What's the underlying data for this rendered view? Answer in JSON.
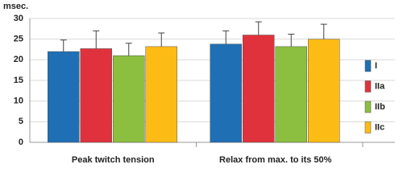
{
  "chart_data": {
    "type": "bar",
    "y_label": "msec.",
    "categories": [
      "Peak twitch tension",
      "Relax from max. to its 50%"
    ],
    "series": [
      {
        "name": "I",
        "color": "#1f6fb4",
        "values": [
          22,
          23.8
        ],
        "errors": [
          2.8,
          3.2
        ]
      },
      {
        "name": "IIa",
        "color": "#e0323c",
        "values": [
          22.7,
          26
        ],
        "errors": [
          4.3,
          3.2
        ]
      },
      {
        "name": "IIb",
        "color": "#8cbf3f",
        "values": [
          21,
          23.2
        ],
        "errors": [
          3,
          3
        ]
      },
      {
        "name": "IIc",
        "color": "#fdbb16",
        "values": [
          23.2,
          25
        ],
        "errors": [
          3.3,
          3.6
        ]
      }
    ],
    "ylim": [
      0,
      30
    ],
    "yticks": [
      0,
      5,
      10,
      15,
      20,
      25,
      30
    ],
    "grid": true
  }
}
